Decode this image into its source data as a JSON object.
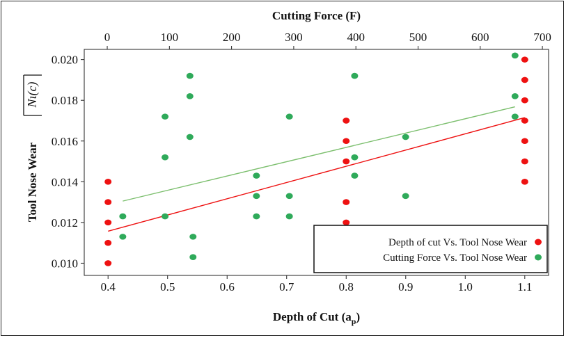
{
  "chart_data": {
    "type": "scatter",
    "top_axis": {
      "label": "Cutting Force (F)",
      "range": [
        -37,
        710
      ],
      "ticks": [
        0,
        100,
        200,
        300,
        400,
        500,
        600,
        700
      ]
    },
    "bottom_axis": {
      "label": "Depth of Cut (a",
      "label_subscript": "p",
      "label_suffix": ")",
      "range": [
        0.36,
        1.14
      ],
      "ticks": [
        "0.4",
        "0.5",
        "0.6",
        "0.7",
        "0.8",
        "0.9",
        "1.0",
        "1.1"
      ]
    },
    "y_axis": {
      "label": "Tool Nose Wear",
      "label_symbol": "Nι(c)",
      "range": [
        0.0094,
        0.0205
      ],
      "ticks": [
        "0.010",
        "0.012",
        "0.014",
        "0.016",
        "0.018",
        "0.020"
      ]
    },
    "legend_position": "bottom-right",
    "series": [
      {
        "name": "Depth of cut Vs. Tool Nose Wear",
        "color": "#ee1111",
        "axis": "bottom",
        "points": [
          [
            0.4,
            0.014
          ],
          [
            0.4,
            0.013
          ],
          [
            0.4,
            0.012
          ],
          [
            0.4,
            0.011
          ],
          [
            0.4,
            0.01
          ],
          [
            0.8,
            0.017
          ],
          [
            0.8,
            0.016
          ],
          [
            0.8,
            0.015
          ],
          [
            0.8,
            0.013
          ],
          [
            0.8,
            0.012
          ],
          [
            1.1,
            0.02
          ],
          [
            1.1,
            0.019
          ],
          [
            1.1,
            0.018
          ],
          [
            1.1,
            0.017
          ],
          [
            1.1,
            0.016
          ],
          [
            1.1,
            0.015
          ],
          [
            1.1,
            0.014
          ]
        ],
        "fit": [
          [
            0.4,
            0.01157
          ],
          [
            1.1,
            0.01715
          ]
        ]
      },
      {
        "name": "Cutting Force Vs. Tool Nose Wear",
        "color": "#2faa5a",
        "line_color": "#7cbf6e",
        "axis": "top",
        "points": [
          [
            25,
            0.0123
          ],
          [
            25,
            0.0113
          ],
          [
            93,
            0.0172
          ],
          [
            93,
            0.0152
          ],
          [
            93,
            0.0123
          ],
          [
            133,
            0.0192
          ],
          [
            133,
            0.0182
          ],
          [
            133,
            0.0162
          ],
          [
            138,
            0.0113
          ],
          [
            138,
            0.0103
          ],
          [
            240,
            0.0143
          ],
          [
            240,
            0.0133
          ],
          [
            240,
            0.0123
          ],
          [
            293,
            0.0172
          ],
          [
            293,
            0.0133
          ],
          [
            293,
            0.0123
          ],
          [
            398,
            0.0192
          ],
          [
            398,
            0.0152
          ],
          [
            398,
            0.0143
          ],
          [
            480,
            0.0162
          ],
          [
            480,
            0.0133
          ],
          [
            656,
            0.0202
          ],
          [
            656,
            0.0182
          ],
          [
            656,
            0.0172
          ]
        ],
        "fit": [
          [
            25,
            0.01305
          ],
          [
            656,
            0.01768
          ]
        ]
      }
    ]
  }
}
